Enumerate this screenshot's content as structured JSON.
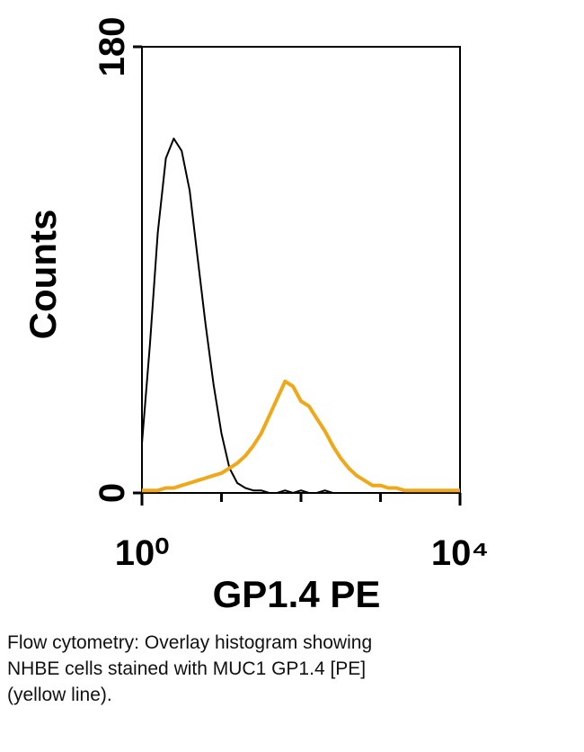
{
  "chart_data": {
    "type": "line",
    "xscale": "log",
    "x_label": "GP1.4 PE",
    "y_label": "Counts",
    "x": [
      1,
      1.26,
      1.58,
      2,
      2.51,
      3.16,
      3.98,
      5.01,
      6.31,
      7.94,
      10,
      12.6,
      15.8,
      20,
      25.1,
      31.6,
      39.8,
      50.1,
      63.1,
      79.4,
      100,
      126,
      158,
      200,
      251,
      316,
      398,
      501,
      631,
      794,
      1000,
      1259,
      1585,
      1995,
      2512,
      3162,
      3981,
      5012,
      6310,
      7943,
      10000
    ],
    "series": [
      {
        "color": "#000000",
        "values": [
          20,
          60,
          105,
          135,
          143,
          138,
          122,
          95,
          68,
          44,
          24,
          10,
          4,
          2,
          1,
          1,
          0,
          0,
          1,
          0,
          1,
          0,
          0,
          1,
          0,
          0,
          0,
          0,
          0,
          0,
          0,
          0,
          0,
          0,
          0,
          0,
          0,
          0,
          0,
          0,
          0
        ]
      },
      {
        "color": "#f0a818",
        "values": [
          1,
          1,
          1,
          2,
          2,
          3,
          4,
          5,
          6,
          7,
          8,
          10,
          12,
          15,
          19,
          24,
          31,
          38,
          45,
          43,
          37,
          35,
          30,
          25,
          19,
          14,
          10,
          7,
          5,
          3,
          3,
          2,
          2,
          1,
          1,
          1,
          1,
          1,
          1,
          1,
          1
        ]
      }
    ],
    "xlim": [
      1,
      10000
    ],
    "ylim": [
      0,
      180
    ],
    "xticks": [
      {
        "value": 1,
        "label": "10⁰"
      },
      {
        "value": 10000,
        "label": "10⁴"
      }
    ],
    "xminorticks": [
      10,
      100,
      1000
    ],
    "yticks": [
      0,
      180
    ]
  },
  "caption": [
    "Flow cytometry: Overlay histogram showing",
    "NHBE cells stained with MUC1 GP1.4 [PE]",
    "(yellow line)."
  ]
}
